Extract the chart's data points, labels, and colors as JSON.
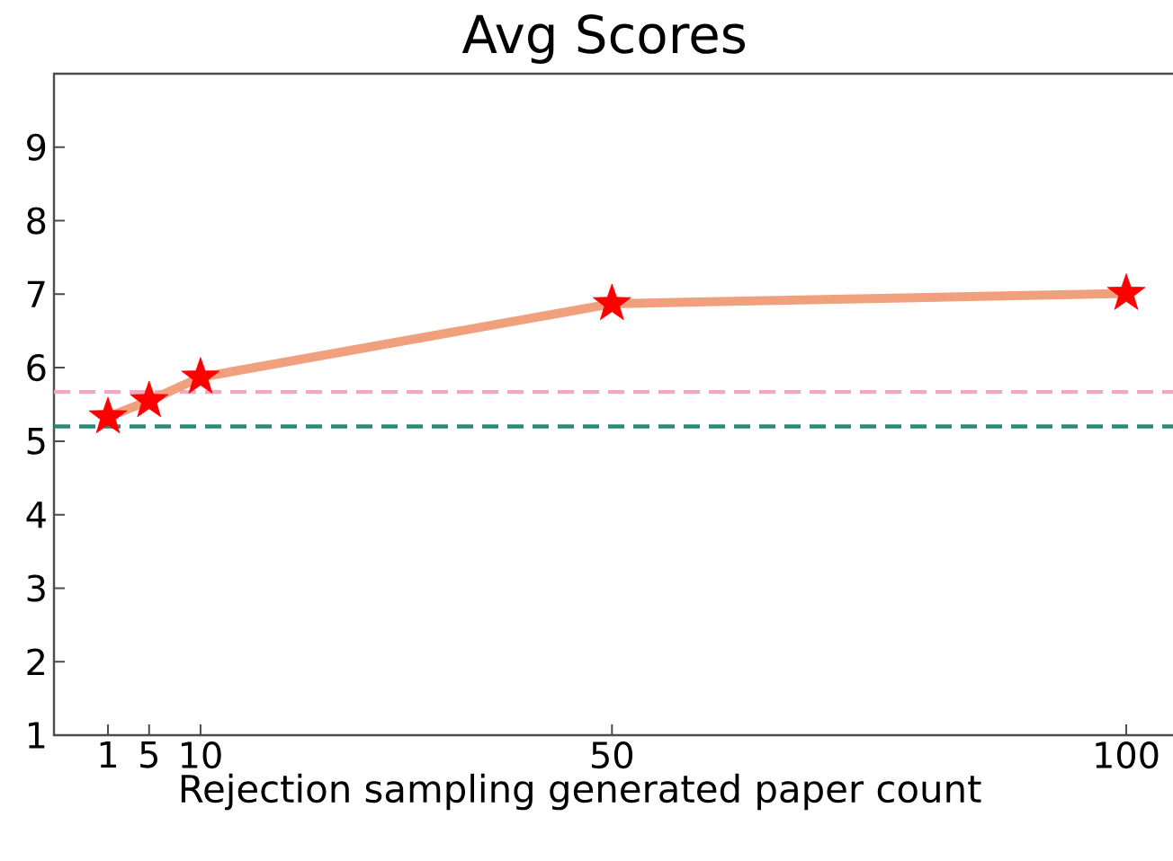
{
  "chart_data": {
    "type": "line",
    "title": "Avg Scores",
    "xlabel": "Rejection sampling generated paper count",
    "x": [
      1,
      5,
      10,
      50,
      100
    ],
    "series": [
      {
        "color": "#f0a07c",
        "values": [
          5.33,
          5.55,
          5.87,
          6.87,
          7.01
        ],
        "marker": "none"
      },
      {
        "type": "scatter",
        "color": "#ff0000",
        "values": [
          5.33,
          5.55,
          5.87,
          6.87,
          7.01
        ],
        "marker": "star"
      }
    ],
    "ref_lines": [
      {
        "axis": "y",
        "value": 5.67,
        "color": "#f2a8c4",
        "line_style": "dashed"
      },
      {
        "axis": "y",
        "value": 5.2,
        "color": "#2a8a78",
        "line_style": "dashed"
      }
    ],
    "xlim": [
      -4.25,
      105
    ],
    "ylim": [
      1,
      10
    ],
    "xticks": [
      1,
      5,
      10,
      50,
      100
    ],
    "yticks": [
      1,
      2,
      3,
      4,
      5,
      6,
      7,
      8,
      9
    ],
    "grid": false
  }
}
